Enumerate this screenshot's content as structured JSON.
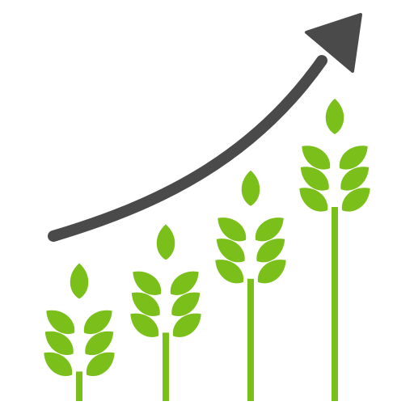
{
  "icon": {
    "name": "wheat-growth-chart-icon",
    "colors": {
      "background": "#ffffff",
      "wheat": "#7bbf1a",
      "arrow": "#4a4a4a"
    },
    "trend": "upward",
    "stalk_count": 4,
    "stalk_relative_heights": [
      0.45,
      0.58,
      0.76,
      1.0
    ]
  }
}
